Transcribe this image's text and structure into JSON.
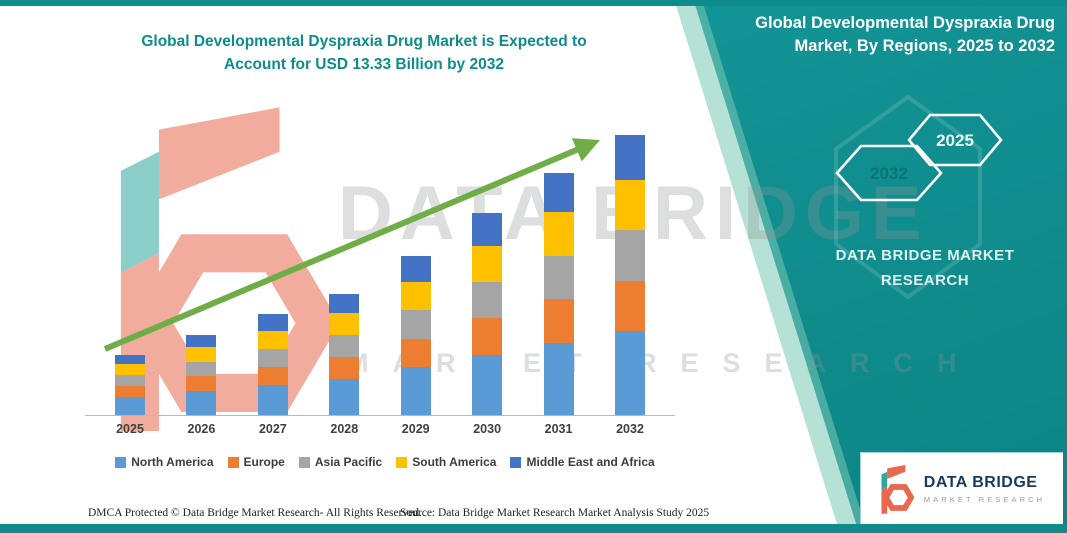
{
  "colors": {
    "teal": "#0e8c8c",
    "panel_teal_light": "#169a9b",
    "panel_teal_dark": "#0c8485",
    "trend_arrow_green": "#6fae47",
    "logo_orange": "#e8694f",
    "logo_teal": "#2fa79e",
    "logo_navy": "#173a5e"
  },
  "header": {
    "left_title": "Global Developmental Dyspraxia Drug Market is Expected to Account for USD 13.33 Billion by 2032",
    "panel_title": "Global Developmental Dyspraxia Drug Market, By Regions, 2025 to 2032"
  },
  "panel": {
    "hexagon_back": "2032",
    "hexagon_front": "2025",
    "brand_line1": "DATA BRIDGE MARKET",
    "brand_line2": "RESEARCH"
  },
  "watermark": {
    "line1": "DATA BRIDGE",
    "line2": "MARKET RESEARCH"
  },
  "logo_box": {
    "name": "DATA BRIDGE",
    "subtitle": "MARKET RESEARCH"
  },
  "footer": {
    "dmca": "DMCA Protected © Data Bridge Market Research-  All Rights Reserved.",
    "source": "Source: Data Bridge Market Research  Market Analysis Study 2025"
  },
  "chart_data": {
    "type": "bar",
    "stacked": true,
    "title": "Global Developmental Dyspraxia Drug Market is Expected to Account for USD 13.33 Billion by 2032",
    "unit": "USD Billion",
    "categories": [
      "2025",
      "2026",
      "2027",
      "2028",
      "2029",
      "2030",
      "2031",
      "2032"
    ],
    "series": [
      {
        "name": "North America",
        "color": "#5b9bd5",
        "values": [
          0.86,
          1.15,
          1.44,
          1.73,
          2.27,
          2.88,
          3.45,
          4.0
        ]
      },
      {
        "name": "Europe",
        "color": "#ed7d31",
        "values": [
          0.52,
          0.69,
          0.86,
          1.04,
          1.36,
          1.73,
          2.07,
          2.4
        ]
      },
      {
        "name": "Asia Pacific",
        "color": "#a5a5a5",
        "values": [
          0.52,
          0.69,
          0.86,
          1.04,
          1.36,
          1.73,
          2.07,
          2.4
        ]
      },
      {
        "name": "South America",
        "color": "#ffc000",
        "values": [
          0.52,
          0.69,
          0.86,
          1.04,
          1.36,
          1.73,
          2.07,
          2.4
        ]
      },
      {
        "name": "Middle East and Africa",
        "color": "#4472c4",
        "values": [
          0.46,
          0.61,
          0.77,
          0.92,
          1.21,
          1.53,
          1.84,
          2.13
        ]
      }
    ],
    "totals": [
      2.88,
      3.84,
      4.8,
      5.77,
      7.56,
      9.6,
      11.5,
      13.33
    ],
    "final_year_total": 13.33,
    "ylim": [
      0,
      14
    ],
    "grid": false,
    "legend_position": "bottom",
    "annotations": [
      "upward green trend arrow across bars"
    ]
  }
}
